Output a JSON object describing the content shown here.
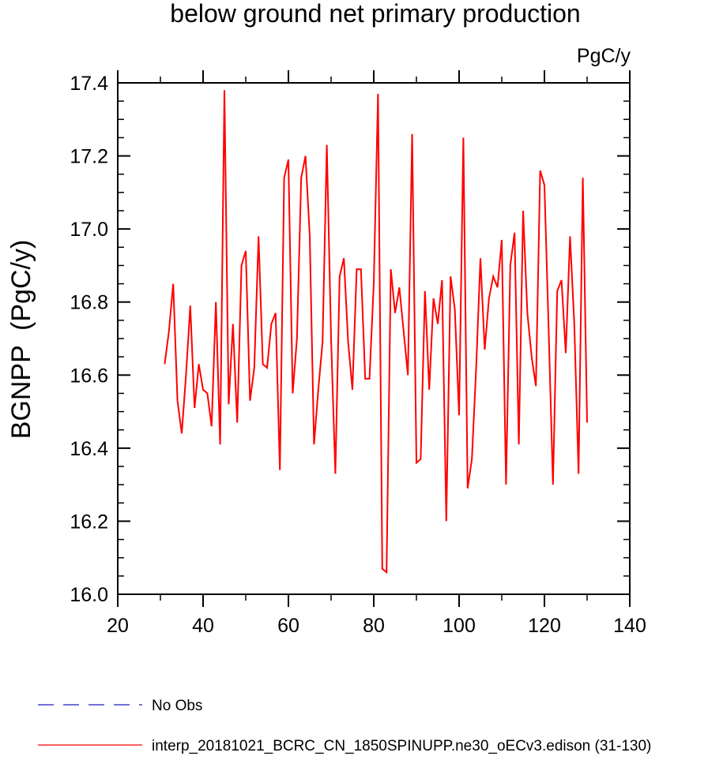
{
  "chart_data": {
    "type": "line",
    "title": "below ground net primary production",
    "units_label": "PgC/y",
    "ylabel": "BGNPP  (PgC/y)",
    "xlabel": "",
    "xlim": [
      20,
      140
    ],
    "ylim": [
      16.0,
      17.4
    ],
    "x_ticks": [
      20,
      40,
      60,
      80,
      100,
      120,
      140
    ],
    "x_tick_labels": [
      "20",
      "40",
      "60",
      "80",
      "100",
      "120",
      "140"
    ],
    "y_ticks": [
      16.0,
      16.2,
      16.4,
      16.6,
      16.8,
      17.0,
      17.2,
      17.4
    ],
    "y_tick_labels": [
      "16.0",
      "16.2",
      "16.4",
      "16.6",
      "16.8",
      "17.0",
      "17.2",
      "17.4"
    ],
    "series": [
      {
        "name": "interp_20181021_BCRC_CN_1850SPINUPP.ne30_oECv3.edison (31-130)",
        "color": "#ff0000",
        "x": [
          31,
          32,
          33,
          34,
          35,
          36,
          37,
          38,
          39,
          40,
          41,
          42,
          43,
          44,
          45,
          46,
          47,
          48,
          49,
          50,
          51,
          52,
          53,
          54,
          55,
          56,
          57,
          58,
          59,
          60,
          61,
          62,
          63,
          64,
          65,
          66,
          67,
          68,
          69,
          70,
          71,
          72,
          73,
          74,
          75,
          76,
          77,
          78,
          79,
          80,
          81,
          82,
          83,
          84,
          85,
          86,
          87,
          88,
          89,
          90,
          91,
          92,
          93,
          94,
          95,
          96,
          97,
          98,
          99,
          100,
          101,
          102,
          103,
          104,
          105,
          106,
          107,
          108,
          109,
          110,
          111,
          112,
          113,
          114,
          115,
          116,
          117,
          118,
          119,
          120,
          121,
          122,
          123,
          124,
          125,
          126,
          127,
          128,
          129,
          130
        ],
        "values": [
          16.63,
          16.72,
          16.85,
          16.53,
          16.44,
          16.6,
          16.79,
          16.51,
          16.63,
          16.56,
          16.55,
          16.46,
          16.8,
          16.41,
          17.38,
          16.52,
          16.74,
          16.47,
          16.9,
          16.94,
          16.53,
          16.62,
          16.98,
          16.63,
          16.62,
          16.74,
          16.77,
          16.34,
          17.14,
          17.19,
          16.55,
          16.7,
          17.14,
          17.2,
          16.98,
          16.41,
          16.56,
          16.69,
          17.23,
          16.7,
          16.33,
          16.87,
          16.92,
          16.69,
          16.56,
          16.89,
          16.89,
          16.59,
          16.59,
          16.85,
          17.37,
          16.07,
          16.06,
          16.89,
          16.77,
          16.84,
          16.72,
          16.6,
          17.26,
          16.36,
          16.37,
          16.83,
          16.56,
          16.81,
          16.74,
          16.86,
          16.2,
          16.87,
          16.78,
          16.49,
          17.25,
          16.29,
          16.37,
          16.62,
          16.92,
          16.67,
          16.81,
          16.87,
          16.84,
          16.97,
          16.3,
          16.9,
          16.99,
          16.41,
          17.05,
          16.77,
          16.65,
          16.57,
          17.16,
          17.12,
          16.72,
          16.3,
          16.83,
          16.86,
          16.66,
          16.98,
          16.74,
          16.33,
          17.14,
          16.47
        ]
      }
    ],
    "legend": [
      {
        "label": "No Obs",
        "color": "#4444cc",
        "style": "dashed"
      },
      {
        "label": "interp_20181021_BCRC_CN_1850SPINUPP.ne30_oECv3.edison (31-130)",
        "color": "#ff0000",
        "style": "solid"
      }
    ]
  }
}
